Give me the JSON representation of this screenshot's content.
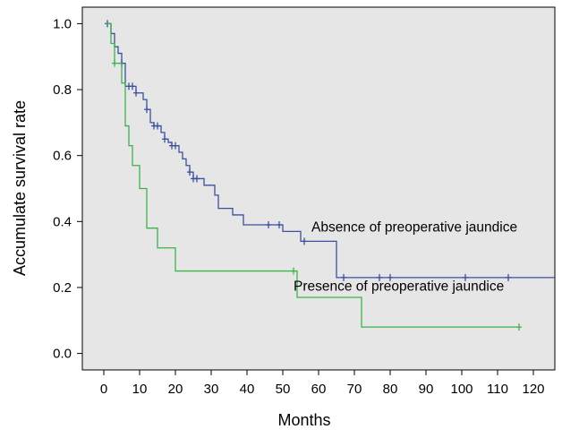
{
  "chart_data": {
    "type": "line",
    "step": true,
    "xlabel": "Months",
    "ylabel": "Accumulate survival rate",
    "xlim": [
      -6,
      126
    ],
    "ylim": [
      -0.05,
      1.05
    ],
    "xticks": [
      0,
      10,
      20,
      30,
      40,
      50,
      60,
      70,
      80,
      90,
      100,
      110,
      120
    ],
    "yticks": [
      "0.0",
      "0.2",
      "0.4",
      "0.6",
      "0.8",
      "1.0"
    ],
    "plot_background": "#e6e6e6",
    "grid": false,
    "series": [
      {
        "name": "Absence of preoperative jaundice",
        "color": "#3a4fa0",
        "steps": [
          [
            0.5,
            1.0
          ],
          [
            2,
            0.97
          ],
          [
            3,
            0.93
          ],
          [
            4,
            0.91
          ],
          [
            5,
            0.88
          ],
          [
            6,
            0.81
          ],
          [
            9,
            0.79
          ],
          [
            11,
            0.77
          ],
          [
            12,
            0.74
          ],
          [
            13,
            0.7
          ],
          [
            14,
            0.69
          ],
          [
            16,
            0.67
          ],
          [
            17,
            0.65
          ],
          [
            18,
            0.64
          ],
          [
            19,
            0.63
          ],
          [
            21,
            0.61
          ],
          [
            22,
            0.59
          ],
          [
            23,
            0.57
          ],
          [
            24,
            0.55
          ],
          [
            25,
            0.53
          ],
          [
            28,
            0.51
          ],
          [
            31,
            0.48
          ],
          [
            32,
            0.44
          ],
          [
            36,
            0.42
          ],
          [
            39,
            0.39
          ],
          [
            50,
            0.37
          ],
          [
            55,
            0.34
          ],
          [
            65,
            0.23
          ],
          [
            126,
            0.23
          ]
        ],
        "censored": [
          [
            1,
            1.0
          ],
          [
            5,
            0.88
          ],
          [
            7,
            0.81
          ],
          [
            8,
            0.81
          ],
          [
            9,
            0.79
          ],
          [
            12,
            0.74
          ],
          [
            14,
            0.69
          ],
          [
            15,
            0.69
          ],
          [
            17,
            0.65
          ],
          [
            19,
            0.63
          ],
          [
            20,
            0.63
          ],
          [
            24,
            0.55
          ],
          [
            25,
            0.53
          ],
          [
            26,
            0.53
          ],
          [
            46,
            0.39
          ],
          [
            49,
            0.39
          ],
          [
            56,
            0.34
          ],
          [
            67,
            0.23
          ],
          [
            77,
            0.23
          ],
          [
            80,
            0.23
          ],
          [
            101,
            0.23
          ],
          [
            113,
            0.23
          ]
        ]
      },
      {
        "name": "Presence of preoperative jaundice",
        "color": "#3cb44b",
        "steps": [
          [
            0.5,
            1.0
          ],
          [
            2,
            0.94
          ],
          [
            3,
            0.88
          ],
          [
            5,
            0.82
          ],
          [
            6,
            0.69
          ],
          [
            7,
            0.63
          ],
          [
            8,
            0.57
          ],
          [
            10,
            0.5
          ],
          [
            12,
            0.38
          ],
          [
            15,
            0.32
          ],
          [
            20,
            0.25
          ],
          [
            53,
            0.25
          ],
          [
            54,
            0.17
          ],
          [
            72,
            0.08
          ],
          [
            116,
            0.08
          ]
        ],
        "censored": [
          [
            3,
            0.88
          ],
          [
            53,
            0.25
          ],
          [
            116,
            0.08
          ]
        ]
      }
    ],
    "annotations": [
      {
        "text": "Absence of preoperative jaundice",
        "x": 58,
        "y": 0.37
      },
      {
        "text": "Presence of preoperative jaundice",
        "x": 53,
        "y": 0.19
      }
    ]
  }
}
